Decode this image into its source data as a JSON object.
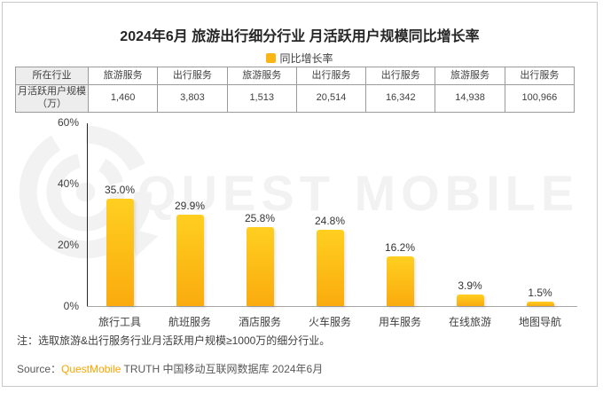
{
  "title": "2024年6月 旅游出行细分行业 月活跃用户规模同比增长率",
  "legend": {
    "label": "同比增长率",
    "color": "#FBB616"
  },
  "table": {
    "row1": [
      "所在行业",
      "旅游服务",
      "出行服务",
      "旅游服务",
      "出行服务",
      "出行服务",
      "旅游服务",
      "出行服务"
    ],
    "row2": [
      "月活跃用户规模（万）",
      "1,460",
      "3,803",
      "1,513",
      "20,514",
      "16,342",
      "14,938",
      "100,966"
    ]
  },
  "chart_data": {
    "type": "bar",
    "title": "2024年6月 旅游出行细分行业 月活跃用户规模同比增长率",
    "categories": [
      "旅行工具",
      "航班服务",
      "酒店服务",
      "火车服务",
      "用车服务",
      "在线旅游",
      "地图导航"
    ],
    "values": [
      35.0,
      29.9,
      25.8,
      24.8,
      16.2,
      3.9,
      1.5
    ],
    "value_labels": [
      "35.0%",
      "29.9%",
      "25.8%",
      "24.8%",
      "16.2%",
      "3.9%",
      "1.5%"
    ],
    "series_name": "同比增长率",
    "xlabel": "",
    "ylabel": "",
    "ylim": [
      0,
      60
    ],
    "yticks": [
      "60%",
      "40%",
      "20%",
      "0%"
    ],
    "grid": false,
    "legend_position": "top",
    "bar_color_top": "#FFCF20",
    "bar_color_bottom": "#FAAB0E"
  },
  "note": "注：选取旅游&出行服务行业月活跃用户规模≥1000万的细分行业。",
  "source": {
    "prefix": "Source：",
    "brand": "QuestMobile",
    "suffix": " TRUTH 中国移动互联网数据库 2024年6月",
    "brand_color": "#F7A600"
  },
  "watermark": {
    "text": "QUEST MOBILE"
  }
}
